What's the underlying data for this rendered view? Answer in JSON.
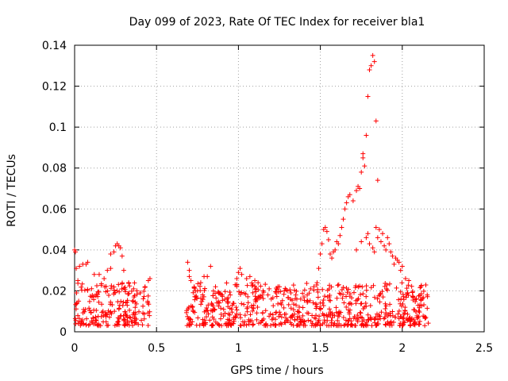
{
  "chart_data": {
    "type": "scatter",
    "title": "Day 099 of 2023, Rate Of TEC Index for receiver bla1",
    "xlabel": "GPS time / hours",
    "ylabel": "ROTI / TECUs",
    "xlim": [
      0,
      2.5
    ],
    "ylim": [
      0,
      0.14
    ],
    "xticks": [
      "0",
      "0.5",
      "1",
      "1.5",
      "2",
      "2.5"
    ],
    "yticks": [
      "0",
      "0.02",
      "0.04",
      "0.06",
      "0.08",
      "0.1",
      "0.12",
      "0.14"
    ],
    "xtick_values": [
      0,
      0.5,
      1,
      1.5,
      2,
      2.5
    ],
    "ytick_values": [
      0,
      0.02,
      0.04,
      0.06,
      0.08,
      0.1,
      0.12,
      0.14
    ],
    "grid": true,
    "marker": "+",
    "color": "#ff0000",
    "series": [
      {
        "points": [
          [
            0.0,
            0.04
          ],
          [
            0.005,
            0.039
          ],
          [
            0.01,
            0.031
          ],
          [
            0.02,
            0.025
          ],
          [
            0.03,
            0.032
          ],
          [
            0.05,
            0.033
          ],
          [
            0.07,
            0.033
          ],
          [
            0.08,
            0.034
          ],
          [
            0.12,
            0.028
          ],
          [
            0.15,
            0.028
          ],
          [
            0.18,
            0.026
          ],
          [
            0.2,
            0.03
          ],
          [
            0.22,
            0.031
          ],
          [
            0.22,
            0.038
          ],
          [
            0.24,
            0.039
          ],
          [
            0.25,
            0.042
          ],
          [
            0.26,
            0.043
          ],
          [
            0.27,
            0.042
          ],
          [
            0.28,
            0.041
          ],
          [
            0.29,
            0.037
          ],
          [
            0.3,
            0.03
          ],
          [
            0.33,
            0.024
          ],
          [
            0.36,
            0.021
          ],
          [
            0.38,
            0.02
          ],
          [
            0.4,
            0.019
          ],
          [
            0.43,
            0.022
          ],
          [
            0.45,
            0.025
          ],
          [
            0.46,
            0.026
          ],
          [
            0.69,
            0.034
          ],
          [
            0.7,
            0.03
          ],
          [
            0.7,
            0.027
          ],
          [
            0.71,
            0.025
          ],
          [
            0.73,
            0.022
          ],
          [
            0.75,
            0.02
          ],
          [
            0.77,
            0.024
          ],
          [
            0.79,
            0.027
          ],
          [
            0.81,
            0.027
          ],
          [
            0.83,
            0.032
          ],
          [
            0.86,
            0.022
          ],
          [
            0.88,
            0.019
          ],
          [
            0.9,
            0.018
          ],
          [
            0.93,
            0.016
          ],
          [
            0.95,
            0.018
          ],
          [
            0.98,
            0.023
          ],
          [
            0.99,
            0.026
          ],
          [
            1.0,
            0.029
          ],
          [
            1.01,
            0.031
          ],
          [
            1.02,
            0.028
          ],
          [
            1.05,
            0.026
          ],
          [
            1.07,
            0.027
          ],
          [
            1.1,
            0.025
          ],
          [
            1.12,
            0.024
          ],
          [
            1.15,
            0.02
          ],
          [
            1.18,
            0.018
          ],
          [
            1.2,
            0.016
          ],
          [
            1.23,
            0.019
          ],
          [
            1.25,
            0.022
          ],
          [
            1.28,
            0.02
          ],
          [
            1.32,
            0.019
          ],
          [
            1.35,
            0.018
          ],
          [
            1.38,
            0.016
          ],
          [
            1.4,
            0.017
          ],
          [
            1.42,
            0.018
          ],
          [
            1.44,
            0.021
          ],
          [
            1.46,
            0.022
          ],
          [
            1.48,
            0.024
          ],
          [
            1.49,
            0.031
          ],
          [
            1.5,
            0.038
          ],
          [
            1.51,
            0.043
          ],
          [
            1.52,
            0.05
          ],
          [
            1.53,
            0.051
          ],
          [
            1.54,
            0.049
          ],
          [
            1.55,
            0.045
          ],
          [
            1.56,
            0.038
          ],
          [
            1.57,
            0.036
          ],
          [
            1.58,
            0.039
          ],
          [
            1.59,
            0.04
          ],
          [
            1.6,
            0.044
          ],
          [
            1.61,
            0.043
          ],
          [
            1.62,
            0.047
          ],
          [
            1.63,
            0.051
          ],
          [
            1.64,
            0.055
          ],
          [
            1.65,
            0.06
          ],
          [
            1.66,
            0.063
          ],
          [
            1.67,
            0.066
          ],
          [
            1.68,
            0.067
          ],
          [
            1.7,
            0.064
          ],
          [
            1.72,
            0.069
          ],
          [
            1.73,
            0.071
          ],
          [
            1.74,
            0.07
          ],
          [
            1.75,
            0.078
          ],
          [
            1.76,
            0.085
          ],
          [
            1.76,
            0.087
          ],
          [
            1.77,
            0.081
          ],
          [
            1.78,
            0.096
          ],
          [
            1.79,
            0.115
          ],
          [
            1.8,
            0.128
          ],
          [
            1.81,
            0.13
          ],
          [
            1.82,
            0.135
          ],
          [
            1.83,
            0.132
          ],
          [
            1.84,
            0.103
          ],
          [
            1.85,
            0.074
          ],
          [
            1.84,
            0.051
          ],
          [
            1.86,
            0.05
          ],
          [
            1.85,
            0.046
          ],
          [
            1.87,
            0.044
          ],
          [
            1.88,
            0.048
          ],
          [
            1.89,
            0.042
          ],
          [
            1.9,
            0.04
          ],
          [
            1.91,
            0.046
          ],
          [
            1.92,
            0.043
          ],
          [
            1.93,
            0.039
          ],
          [
            1.94,
            0.037
          ],
          [
            1.95,
            0.033
          ],
          [
            1.96,
            0.036
          ],
          [
            1.97,
            0.035
          ],
          [
            1.98,
            0.034
          ],
          [
            1.99,
            0.03
          ],
          [
            2.0,
            0.032
          ],
          [
            2.02,
            0.026
          ],
          [
            2.04,
            0.025
          ],
          [
            1.72,
            0.04
          ],
          [
            1.75,
            0.044
          ],
          [
            1.78,
            0.046
          ],
          [
            1.8,
            0.043
          ],
          [
            1.82,
            0.041
          ],
          [
            1.83,
            0.039
          ],
          [
            1.79,
            0.048
          ]
        ],
        "band": {
          "segments": [
            [
              0.0,
              0.46
            ],
            [
              0.68,
              2.16
            ]
          ],
          "min": 0.003,
          "max": 0.024,
          "count": 900
        }
      }
    ]
  }
}
